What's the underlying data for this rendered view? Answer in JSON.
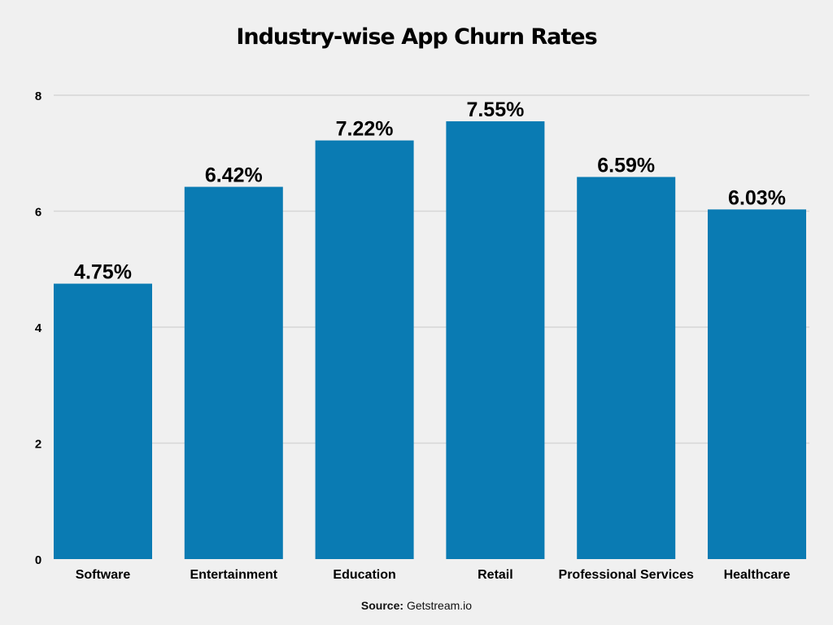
{
  "chart_data": {
    "type": "bar",
    "title": "Industry-wise App Churn Rates",
    "categories": [
      "Software",
      "Entertainment",
      "Education",
      "Retail",
      "Professional Services",
      "Healthcare"
    ],
    "values": [
      4.75,
      6.42,
      7.22,
      7.55,
      6.59,
      6.03
    ],
    "data_labels": [
      "4.75%",
      "6.42%",
      "7.22%",
      "7.55%",
      "6.59%",
      "6.03%"
    ],
    "yticks": [
      0,
      2,
      4,
      6,
      8
    ],
    "ylim": [
      0,
      8
    ],
    "xlabel": "",
    "ylabel": "",
    "grid": true,
    "bar_color": "#0a7bb3"
  },
  "source": {
    "label": "Source:",
    "value": "Getstream.io"
  }
}
